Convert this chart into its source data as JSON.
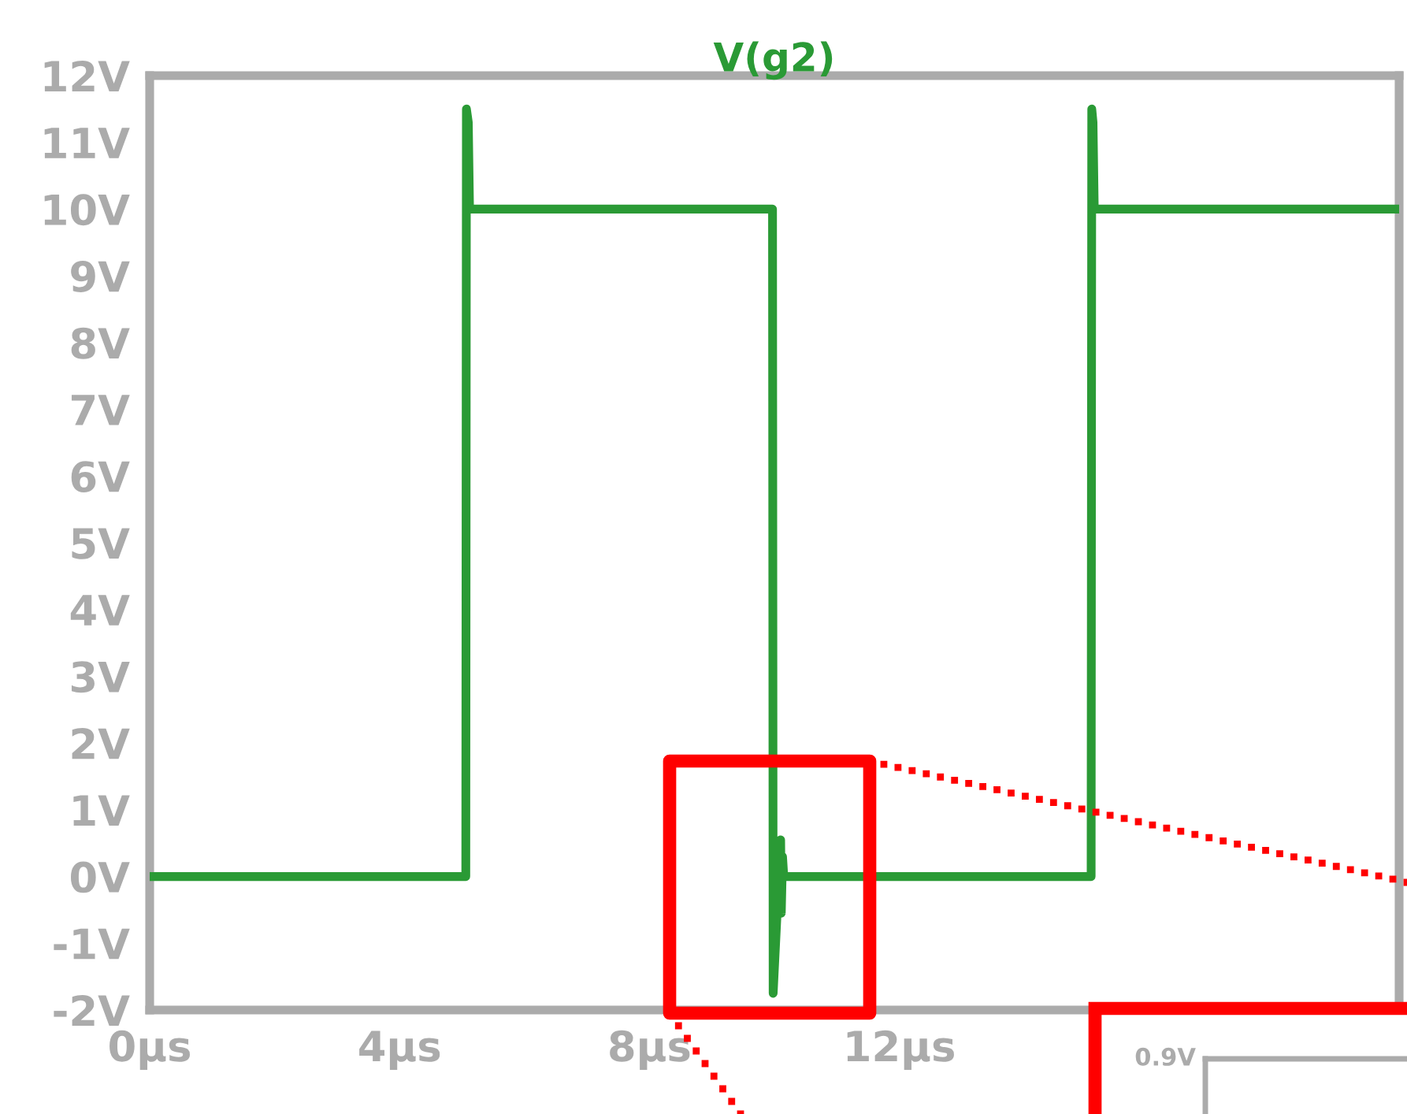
{
  "chart_data": [
    {
      "type": "line",
      "title": "V(g2)",
      "series": [
        {
          "color": "#2a9a35",
          "x": [
            0,
            5.06,
            5.07,
            5.1,
            5.12,
            5.2,
            9.97,
            9.98,
            10.1,
            10.11,
            10.13,
            10.15,
            10.2,
            15.07,
            15.08,
            15.1,
            15.12,
            15.2,
            20
          ],
          "values": [
            0,
            0,
            11.5,
            11.3,
            10,
            10,
            10,
            -1.75,
            0.55,
            -0.55,
            0.3,
            0,
            0,
            0,
            11.5,
            11.3,
            10,
            10,
            10
          ]
        }
      ],
      "xlim": [
        0,
        20
      ],
      "ylim": [
        -2,
        12
      ],
      "xticks": [
        {
          "value": 0,
          "label": "0µs"
        },
        {
          "value": 4,
          "label": "4µs"
        },
        {
          "value": 8,
          "label": "8µs"
        },
        {
          "value": 12,
          "label": "12µs"
        }
      ],
      "yticks": [
        {
          "value": -2,
          "label": "-2V"
        },
        {
          "value": -1,
          "label": "-1V"
        },
        {
          "value": 0,
          "label": "0V"
        },
        {
          "value": 1,
          "label": "1V"
        },
        {
          "value": 2,
          "label": "2V"
        },
        {
          "value": 3,
          "label": "3V"
        },
        {
          "value": 4,
          "label": "4V"
        },
        {
          "value": 5,
          "label": "5V"
        },
        {
          "value": 6,
          "label": "6V"
        },
        {
          "value": 7,
          "label": "7V"
        },
        {
          "value": 8,
          "label": "8V"
        },
        {
          "value": 9,
          "label": "9V"
        },
        {
          "value": 10,
          "label": "10V"
        },
        {
          "value": 11,
          "label": "11V"
        },
        {
          "value": 12,
          "label": "12V"
        }
      ],
      "grid": false,
      "line_style": "solid",
      "marker": "none"
    },
    {
      "type": "other",
      "annotations": [
        "0.9V"
      ]
    }
  ]
}
